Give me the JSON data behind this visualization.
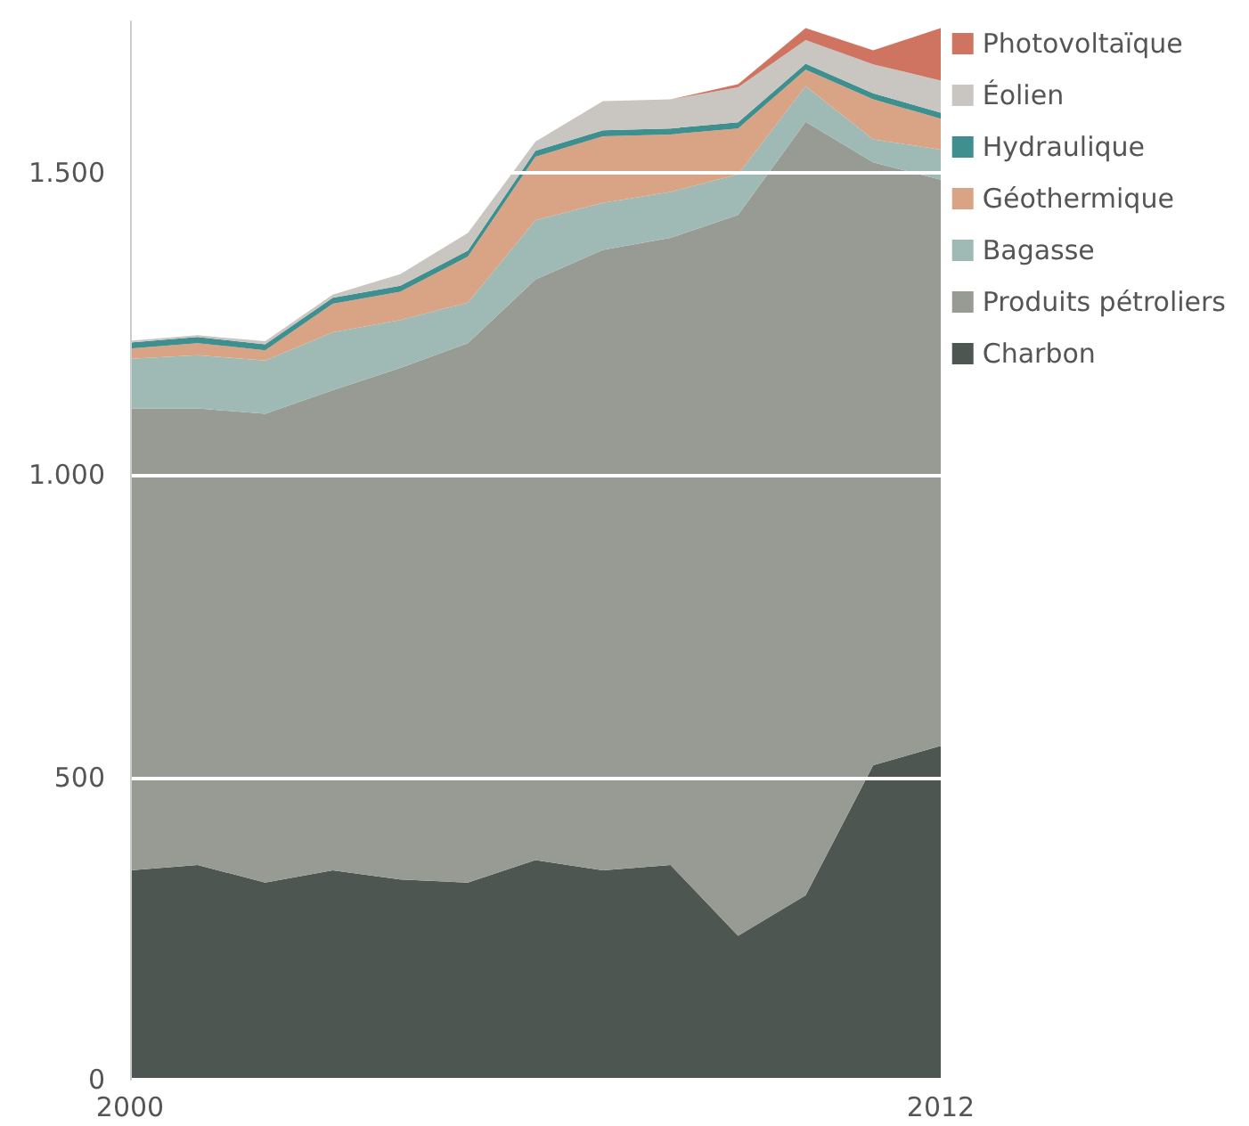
{
  "chart_data": {
    "type": "area",
    "stacked": true,
    "x": [
      2000,
      2001,
      2002,
      2003,
      2004,
      2005,
      2006,
      2007,
      2008,
      2009,
      2010,
      2011,
      2012
    ],
    "xlim": [
      2000,
      2012
    ],
    "xticks": [
      2000,
      2012
    ],
    "ylim": [
      0,
      1750
    ],
    "yticks": [
      0,
      500,
      {
        "value": 1000,
        "label": "1.000"
      },
      {
        "value": 1500,
        "label": "1.500"
      }
    ],
    "grid": "y",
    "legend": "right",
    "series": [
      {
        "name": "Charbon",
        "color": "#4d5650",
        "values": [
          346,
          355,
          326,
          346,
          331,
          326,
          363,
          346,
          355,
          238,
          305,
          520,
          552
        ]
      },
      {
        "name": "Produits pétroliers",
        "color": "#979b94",
        "values": [
          764,
          755,
          775,
          794,
          846,
          892,
          960,
          1026,
          1037,
          1192,
          1279,
          997,
          936
        ]
      },
      {
        "name": "Bagasse",
        "color": "#9fbab5",
        "values": [
          82,
          88,
          88,
          96,
          79,
          67,
          98,
          78,
          76,
          67,
          59,
          38,
          50
        ]
      },
      {
        "name": "Géothermique",
        "color": "#d9a486",
        "values": [
          17,
          20,
          17,
          47,
          47,
          76,
          105,
          110,
          95,
          76,
          27,
          66,
          51
        ]
      },
      {
        "name": "Hydraulique",
        "color": "#3f8f8f",
        "values": [
          10,
          10,
          10,
          10,
          10,
          10,
          10,
          10,
          10,
          10,
          10,
          10,
          10
        ]
      },
      {
        "name": "Éolien",
        "color": "#c9c6c2",
        "values": [
          3,
          3,
          5,
          5,
          19,
          29,
          15,
          48,
          48,
          58,
          39,
          48,
          53
        ]
      },
      {
        "name": "Photovoltaïque",
        "color": "#cf7460",
        "values": [
          0,
          0,
          0,
          0,
          0,
          0,
          0,
          0,
          0,
          5,
          20,
          23,
          87
        ]
      }
    ]
  }
}
